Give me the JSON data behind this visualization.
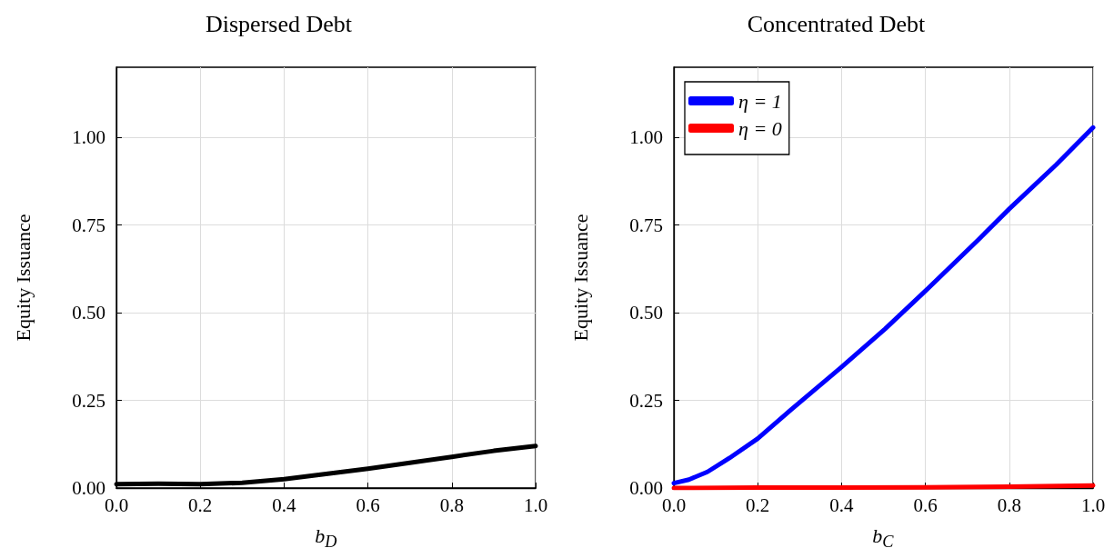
{
  "chart_data": [
    {
      "type": "line",
      "title": "Dispersed Debt",
      "xlabel": "b$_{D}$",
      "ylabel": "Equity Issuance",
      "x": [
        0,
        0.1,
        0.2,
        0.3,
        0.4,
        0.5,
        0.6,
        0.7,
        0.8,
        0.9,
        1.0
      ],
      "series": [
        {
          "color": "#000000",
          "values": [
            0.011,
            0.012,
            0.011,
            0.015,
            0.025,
            0.04,
            0.055,
            0.072,
            0.089,
            0.106,
            0.12
          ]
        }
      ],
      "xlim": [
        0,
        1
      ],
      "xticks": [
        {
          "value": 0,
          "label": "0.0"
        },
        {
          "value": 0.2,
          "label": "0.2"
        },
        {
          "value": 0.4,
          "label": "0.4"
        },
        {
          "value": 0.6,
          "label": "0.6"
        },
        {
          "value": 0.8,
          "label": "0.8"
        },
        {
          "value": 1,
          "label": "1.0"
        }
      ],
      "ylim": [
        0,
        1.2
      ],
      "yticks": [
        {
          "value": 0,
          "label": "0.00"
        },
        {
          "value": 0.25,
          "label": "0.25"
        },
        {
          "value": 0.5,
          "label": "0.50"
        },
        {
          "value": 0.75,
          "label": "0.75"
        },
        {
          "value": 1,
          "label": "1.00"
        }
      ],
      "grid": true,
      "legend": false,
      "marker": "none",
      "line_style": "solid"
    },
    {
      "type": "line",
      "title": "Concentrated Debt",
      "xlabel": "b$_{C}$",
      "ylabel": "Equity Issuance",
      "x": [
        0,
        0.036,
        0.08,
        0.132,
        0.2,
        0.28,
        0.4,
        0.504,
        0.6,
        0.727,
        0.8,
        0.912,
        1.0
      ],
      "series": [
        {
          "name": "η = 1",
          "color": "#0000ff",
          "values": [
            0.014,
            0.024,
            0.046,
            0.085,
            0.141,
            0.224,
            0.345,
            0.454,
            0.562,
            0.709,
            0.796,
            0.922,
            1.028
          ]
        },
        {
          "name": "η = 0",
          "color": "#ff0000",
          "x": [
            0,
            0.2,
            0.4,
            0.6,
            0.8,
            1.0
          ],
          "values": [
            0,
            0.001,
            0.001,
            0.002,
            0.004,
            0.007
          ]
        }
      ],
      "xlim": [
        0,
        1
      ],
      "xticks": [
        {
          "value": 0,
          "label": "0.0"
        },
        {
          "value": 0.2,
          "label": "0.2"
        },
        {
          "value": 0.4,
          "label": "0.4"
        },
        {
          "value": 0.6,
          "label": "0.6"
        },
        {
          "value": 0.8,
          "label": "0.8"
        },
        {
          "value": 1,
          "label": "1.0"
        }
      ],
      "ylim": [
        0,
        1.2
      ],
      "yticks": [
        {
          "value": 0,
          "label": "0.00"
        },
        {
          "value": 0.25,
          "label": "0.25"
        },
        {
          "value": 0.5,
          "label": "0.50"
        },
        {
          "value": 0.75,
          "label": "0.75"
        },
        {
          "value": 1,
          "label": "1.00"
        }
      ],
      "grid": true,
      "legend": "top left",
      "marker": "none",
      "line_style": "solid"
    }
  ]
}
